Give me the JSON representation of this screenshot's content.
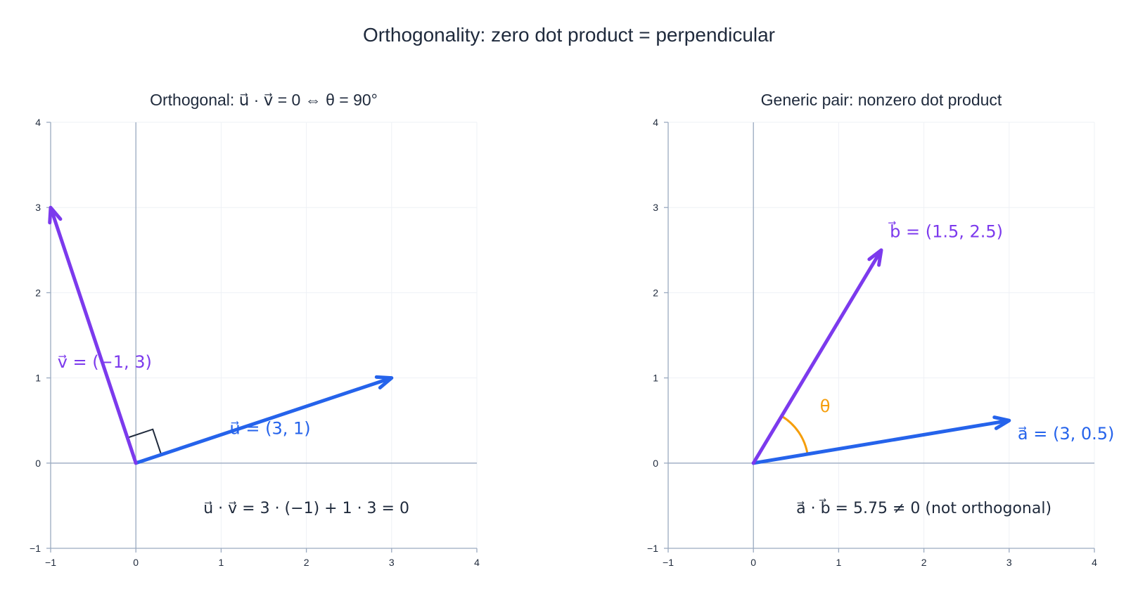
{
  "title": "Orthogonality: zero dot product = perpendicular",
  "colors": {
    "first_vector": "#2563eb",
    "second_vector": "#7c3aed",
    "angle_arc": "#f59e0b",
    "right_angle": "#1f2a3c",
    "axis": "#9aaac0",
    "grid": "#eef1f6",
    "text": "#1f2a3c"
  },
  "chart_data": [
    {
      "type": "vector-diagram",
      "title": "Orthogonal:  u⃗ · v⃗ = 0  ⇔  θ = 90°",
      "xlim": [
        -1,
        4
      ],
      "ylim": [
        -1,
        4
      ],
      "xticks": [
        -1,
        0,
        1,
        2,
        3,
        4
      ],
      "yticks": [
        -1,
        0,
        1,
        2,
        3,
        4
      ],
      "grid": true,
      "vectors": [
        {
          "name": "u",
          "from": [
            0,
            0
          ],
          "to": [
            3,
            1
          ],
          "color": "#2563eb",
          "label": "u⃗ = (3, 1)",
          "label_pos": [
            1.1,
            0.34
          ]
        },
        {
          "name": "v",
          "from": [
            0,
            0
          ],
          "to": [
            -1,
            3
          ],
          "color": "#7c3aed",
          "label": "v⃗ = (−1, 3)",
          "label_pos": [
            -0.92,
            1.12
          ]
        }
      ],
      "right_angle_marker": true,
      "annotation": {
        "text": "u⃗ · v⃗ = 3 · (−1) + 1 · 3 = 0",
        "pos": [
          2.0,
          -0.52
        ]
      }
    },
    {
      "type": "vector-diagram",
      "title": "Generic pair: nonzero dot product",
      "xlim": [
        -1,
        4
      ],
      "ylim": [
        -1,
        4
      ],
      "xticks": [
        -1,
        0,
        1,
        2,
        3,
        4
      ],
      "yticks": [
        -1,
        0,
        1,
        2,
        3,
        4
      ],
      "grid": true,
      "vectors": [
        {
          "name": "a",
          "from": [
            0,
            0
          ],
          "to": [
            3,
            0.5
          ],
          "color": "#2563eb",
          "label": "a⃗ = (3, 0.5)",
          "label_pos": [
            3.1,
            0.28
          ]
        },
        {
          "name": "b",
          "from": [
            0,
            0
          ],
          "to": [
            1.5,
            2.5
          ],
          "color": "#7c3aed",
          "label": "b⃗ = (1.5, 2.5)",
          "label_pos": [
            1.6,
            2.65
          ]
        }
      ],
      "angle_marker": {
        "label": "θ",
        "color": "#f59e0b",
        "label_pos": [
          0.78,
          0.6
        ]
      },
      "annotation": {
        "text": "a⃗ · b⃗ = 5.75 ≠ 0  (not orthogonal)",
        "pos": [
          2.0,
          -0.52
        ]
      }
    }
  ]
}
